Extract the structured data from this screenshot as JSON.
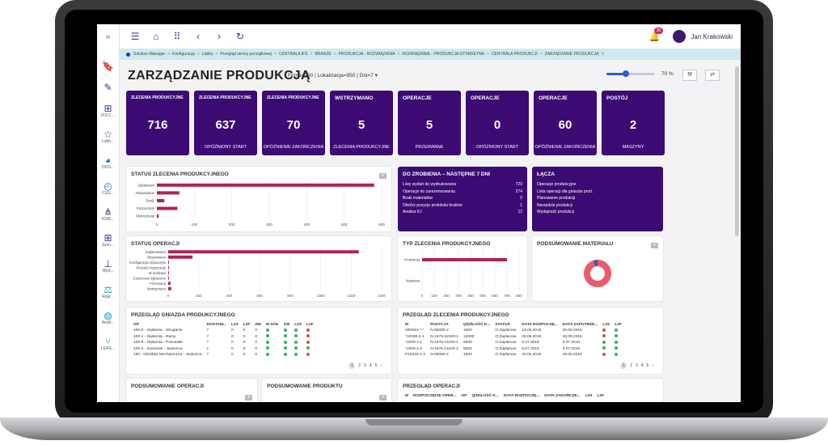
{
  "app": {
    "user_name": "Jan Krakowski",
    "notification_count": "36"
  },
  "rail": [
    {
      "icon": "bookmark-icon",
      "label": ""
    },
    {
      "icon": "pencil-icon",
      "label": ""
    },
    {
      "icon": "sitemap-icon",
      "label": "IFS C..."
    },
    {
      "icon": "star-icon",
      "label": "Lobb..."
    },
    {
      "icon": "pie-icon",
      "label": "DOS..."
    },
    {
      "icon": "clock-icon",
      "label": "CUS..."
    },
    {
      "icon": "network-icon",
      "label": "KSIĘ..."
    },
    {
      "icon": "sitemap-icon",
      "label": "Sync..."
    },
    {
      "icon": "stamp-icon",
      "label": "Wyd..."
    },
    {
      "icon": "scales-icon",
      "label": "Reje..."
    },
    {
      "icon": "globe-icon",
      "label": "Anali..."
    },
    {
      "icon": "hierarchy-icon",
      "label": "LEAS..."
    }
  ],
  "breadcrumbs": [
    "Solution Manager",
    "Konfiguracja",
    "Lobby",
    "Przegląd strony początkowej",
    "CENTRALA IFS",
    "BRANŻE",
    "PRODUKCJA - ROZWIĄZANIA",
    "ROZWIĄZANIE - PRODUKCJA DYSKRETNA",
    "CENTRALA PRODUKCJI",
    "ZARZĄDZANIE PRODUKCJĄ"
  ],
  "page": {
    "title": "ZARZĄDZANIE PRODUKCJĄ",
    "filter": "Firma=950 | Lokalizacja=950 | Dni=7 ▾",
    "zoom": "70 %",
    "zoom_level": 0.4
  },
  "kpis": [
    {
      "title": "ZLECENIA PRODUKCYJNE",
      "value": "716",
      "sub": ""
    },
    {
      "title": "ZLECENIA PRODUKCYJNE",
      "value": "637",
      "sub": "OPÓŹNIONY START"
    },
    {
      "title": "ZLECENIA PRODUKCYJNE",
      "value": "70",
      "sub": "OPÓŹNIENIE ZAKOŃCZENIA"
    },
    {
      "title": "WSTRZYMANO",
      "value": "5",
      "sub": "ZLECENIA PRODUKCYJNE"
    },
    {
      "title": "OPERACJE",
      "value": "5",
      "sub": "PRZERWANE"
    },
    {
      "title": "OPERACJE",
      "value": "0",
      "sub": "OPÓŹNIONY START"
    },
    {
      "title": "OPERACJE",
      "value": "60",
      "sub": "OPÓŹNIENIE ZAKOŃCZENIA"
    },
    {
      "title": "POSTÓJ",
      "value": "2",
      "sub": "MASZYNY"
    }
  ],
  "cards": {
    "status_zlecenia": "STATUS ZLECENIA PRODUKCYJNEGO",
    "status_operacji": "STATUS OPERACJI",
    "do_zrobienia": "DO ZROBIENIA – NASTĘPNE 7 DNI",
    "lacza": "ŁĄCZA",
    "typ_zlecenia": "TYP ZLECENIA PRODUKCYJNEGO",
    "podsumowanie_materialu": "PODSUMOWANIE MATERIAŁU",
    "przeglad_gniazda": "PRZEGLĄD GNIAZDA PRODUKCYJNEGO",
    "przeglad_zlecenia": "PRZEGLĄD ZLECENIA PRODUKCYJNEGO",
    "podsumowanie_operacji": "PODSUMOWANIE OPERACJI",
    "podsumowanie_produktu": "PODSUMOWANIE PRODUKTU",
    "przeglad_operacji": "PRZEGLĄD OPERACJI"
  },
  "todo": [
    {
      "label": "Listy wydań do wydrukowania",
      "value": "720"
    },
    {
      "label": "Operacje do zarezerwowania",
      "value": "274"
    },
    {
      "label": "Braki materiałów",
      "value": "0"
    },
    {
      "label": "Otwórz pozycje protokołu braków",
      "value": "1"
    },
    {
      "label": "Analiza KJ",
      "value": "12"
    }
  ],
  "links": [
    "Operacje produkcyjne",
    "Lista operacji dla gniazda prod.",
    "Planowanie produkcji",
    "Narzędzie produkcji",
    "Wydajność produkcji"
  ],
  "chart_data": [
    {
      "type": "bar",
      "orientation": "horizontal",
      "title": "STATUS ZLECENIA PRODUKCYJNEGO",
      "categories": [
        "Zaplanowo",
        "Aktywowane",
        "Zwolj.",
        "Rozpoczęte",
        "Wstrzymany"
      ],
      "values": [
        580,
        60,
        20,
        55,
        5
      ],
      "xlim": [
        0,
        600
      ],
      "ticks": [
        0,
        100,
        200,
        300,
        400,
        500,
        600
      ],
      "color": "#b0234f"
    },
    {
      "type": "bar",
      "orientation": "horizontal",
      "title": "STATUS OPERACJI",
      "categories": [
        "Zaplanowano",
        "Aktywowane",
        "Konfiguracja rozpoczęta",
        "Przestój rozpoczęty",
        "W realizacji",
        "Częściowo zgłoszone",
        "Przerwana",
        "Wstrzymano"
      ],
      "values": [
        1250,
        160,
        5,
        5,
        5,
        5,
        15,
        20
      ],
      "xlim": [
        0,
        1400
      ],
      "ticks": [
        0,
        200,
        400,
        600,
        800,
        1000,
        1200,
        1400
      ],
      "color": "#b0234f"
    },
    {
      "type": "bar",
      "orientation": "horizontal",
      "title": "TYP ZLECENIA PRODUKCYJNEGO",
      "categories": [
        "Produkcja",
        "Naprawa"
      ],
      "values": [
        700,
        0
      ],
      "xlim": [
        0,
        800
      ],
      "ticks": [
        0,
        100,
        200,
        300,
        400,
        500,
        600,
        700,
        800
      ],
      "color": "#b0234f"
    },
    {
      "type": "pie",
      "title": "PODSUMOWANIE MATERIAŁU",
      "values": [
        95,
        5
      ],
      "colors": [
        "#ec5a6a",
        "#3b5aa0"
      ]
    }
  ],
  "gniazda": {
    "headers": [
      "GP",
      "DOSTAW...",
      "L2S",
      "L2F",
      "ZW",
      "W DÓŁ",
      "ZW",
      "L2S",
      "L2F"
    ],
    "rows": [
      [
        "100-0 - Gięłarnia - Struganie",
        "7",
        "0",
        "0",
        "0",
        "g",
        "g",
        "g",
        "r"
      ],
      [
        "100-1 - Gięłarnia - Ramy",
        "7",
        "0",
        "0",
        "0",
        "g",
        "g",
        "g",
        "r"
      ],
      [
        "100-5 - Gięłarnia - Pozostałe",
        "7",
        "0",
        "0",
        "0",
        "g",
        "g",
        "g",
        "r"
      ],
      [
        "100-2 - Suszenie - Jasienica",
        "1",
        "0",
        "0",
        "0",
        "g",
        "g",
        "g",
        "g"
      ],
      [
        "150 - Obróbka Mechaniczna - Jasienica",
        "7",
        "0",
        "0",
        "0",
        "g",
        "g",
        "g",
        "r"
      ]
    ]
  },
  "zlecenia": {
    "headers": [
      "M",
      "POZYCJA",
      "Q/D/ILOŚĆ K...",
      "STATUS",
      "DATA ROZPOCZĘ...",
      "DATA ZAPOTRZE...",
      "L2S",
      "L2F"
    ],
    "rows": [
      [
        "200254-*-*",
        "N-55080-2",
        "1500",
        "O.Zaplanow.",
        "19.06.2018",
        "20.06.2018",
        "r",
        "g"
      ],
      [
        "*10000-2-1",
        "N-1676-42100-1",
        "12000",
        "O.Zaplanow.",
        "25.06.2018",
        "26.06.2018",
        "r",
        "g"
      ],
      [
        "*1000-1-1",
        "N-1676-21100-1",
        "5000",
        "O.Zaplanow.",
        "5.07.2018",
        "6.07.2018",
        "g",
        "g"
      ],
      [
        "*1000-1-2",
        "N-1676-21100-1",
        "5000",
        "O.Zaplanow.",
        "6.07.2018",
        "9.07.2018",
        "g",
        "g"
      ],
      [
        "P10432-1-2",
        "N-55080-2",
        "1500",
        "O.Zaplanow.",
        "28.06.2018",
        "29.06.2018",
        "r",
        "g"
      ]
    ]
  },
  "operacje": {
    "headers": [
      "M",
      "ROZPOCZĘCIE OPER...",
      "GP",
      "Q/D/ILOŚĆ K...",
      "DATA ROZPOCZĘ...",
      "DATA ZAKOŃCZE...",
      "L2S",
      "L2F"
    ]
  },
  "pager": [
    "1",
    "2",
    "3",
    "4",
    "5",
    "›"
  ]
}
